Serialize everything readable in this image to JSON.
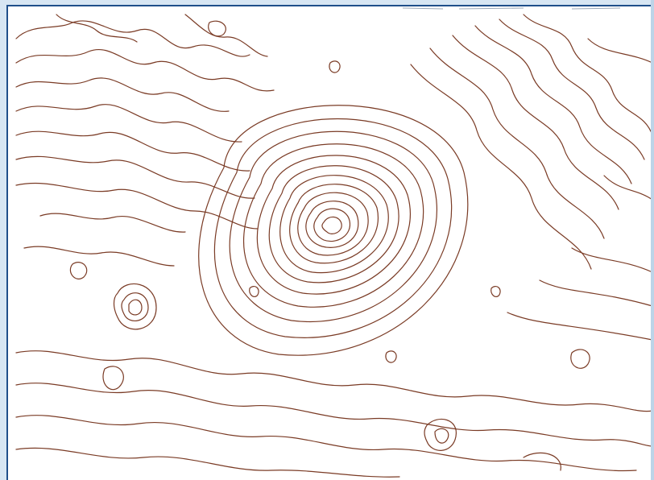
{
  "map": {
    "type": "topographic-contour",
    "contour_color": "#7a3b25",
    "background_color": "#ffffff",
    "frame_color": "#1f4f8a",
    "features": [
      "summit",
      "secondary-hill"
    ]
  }
}
